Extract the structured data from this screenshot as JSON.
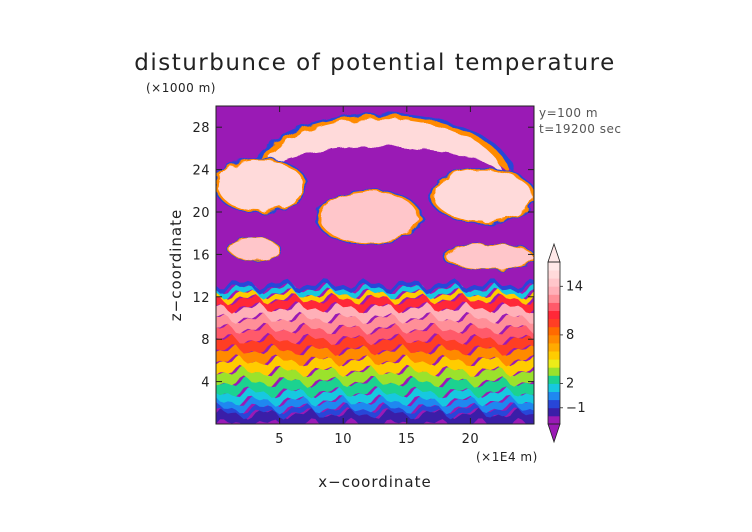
{
  "chart_data": {
    "type": "heatmap",
    "title": "disturbunce of potential temperature",
    "xlabel": "x−coordinate",
    "ylabel": "z−coordinate",
    "x_unit": "(×1E4 m)",
    "y_unit": "(×1000 m)",
    "annotations": [
      "y=100 m",
      "t=19200 sec"
    ],
    "xlim": [
      0,
      25
    ],
    "ylim": [
      0,
      30
    ],
    "x_ticks": [
      5,
      10,
      15,
      20
    ],
    "y_ticks": [
      4,
      8,
      12,
      16,
      20,
      24,
      28
    ],
    "colorbar": {
      "labels": [
        {
          "value": -1,
          "text": "−1"
        },
        {
          "value": 2,
          "text": "2"
        },
        {
          "value": 8,
          "text": "8"
        },
        {
          "value": 14,
          "text": "14"
        }
      ],
      "levels": [
        -3,
        -2,
        -1,
        0,
        1,
        2,
        3,
        4,
        5,
        6,
        7,
        8,
        9,
        10,
        11,
        12,
        13,
        14,
        15,
        16
      ],
      "colors": [
        "#9a1ab5",
        "#3a1ea8",
        "#2846d8",
        "#1f88f0",
        "#17c8e0",
        "#1cd290",
        "#9be22c",
        "#ecec18",
        "#ffcc00",
        "#ffaa00",
        "#ff8a00",
        "#ff6a00",
        "#ff3e24",
        "#ff2838",
        "#ff5a6a",
        "#ff8f98",
        "#ffb0b8",
        "#ffc6ca",
        "#ffdada",
        "#ffe8e8"
      ],
      "extend": "both"
    },
    "background_color": "#9a1ab5",
    "field_description": {
      "stable_layers_z_km": [
        {
          "z": [
            0,
            1
          ],
          "value": -2
        },
        {
          "z": [
            1,
            1.5
          ],
          "value": -1
        },
        {
          "z": [
            1.5,
            2.2
          ],
          "value": 0
        },
        {
          "z": [
            2.2,
            3
          ],
          "value": 1
        },
        {
          "z": [
            3,
            4
          ],
          "value": 2
        },
        {
          "z": [
            4,
            5
          ],
          "value": 3
        },
        {
          "z": [
            5,
            6
          ],
          "value": 5
        },
        {
          "z": [
            6,
            7
          ],
          "value": 7
        },
        {
          "z": [
            7,
            8
          ],
          "value": 9
        },
        {
          "z": [
            8,
            9
          ],
          "value": 11
        },
        {
          "z": [
            9,
            10
          ],
          "value": 12
        },
        {
          "z": [
            10,
            11
          ],
          "value": 13
        },
        {
          "z": [
            11,
            11.8
          ],
          "value": 10
        },
        {
          "z": [
            11.8,
            12.3
          ],
          "value": 5
        },
        {
          "z": [
            12.3,
            12.8
          ],
          "value": 1
        },
        {
          "z": [
            12.8,
            13.2
          ],
          "value": -1
        }
      ],
      "upper_structures": [
        {
          "name": "arch",
          "x_range": [
            3,
            23
          ],
          "z_range": [
            23,
            29
          ],
          "value": 15
        },
        {
          "name": "left-anvil",
          "x_range": [
            0,
            7
          ],
          "z_range": [
            20,
            25
          ],
          "value": 15
        },
        {
          "name": "right-anvil",
          "x_range": [
            17,
            25
          ],
          "z_range": [
            19,
            24
          ],
          "value": 15
        },
        {
          "name": "central-cells",
          "x_range": [
            8,
            16
          ],
          "z_range": [
            17,
            22
          ],
          "value": 14
        },
        {
          "name": "left-band",
          "x_range": [
            1,
            5
          ],
          "z_range": [
            15.5,
            17.5
          ],
          "value": 14
        },
        {
          "name": "right-band",
          "x_range": [
            18,
            25
          ],
          "z_range": [
            14.5,
            17
          ],
          "value": 14
        }
      ]
    }
  }
}
